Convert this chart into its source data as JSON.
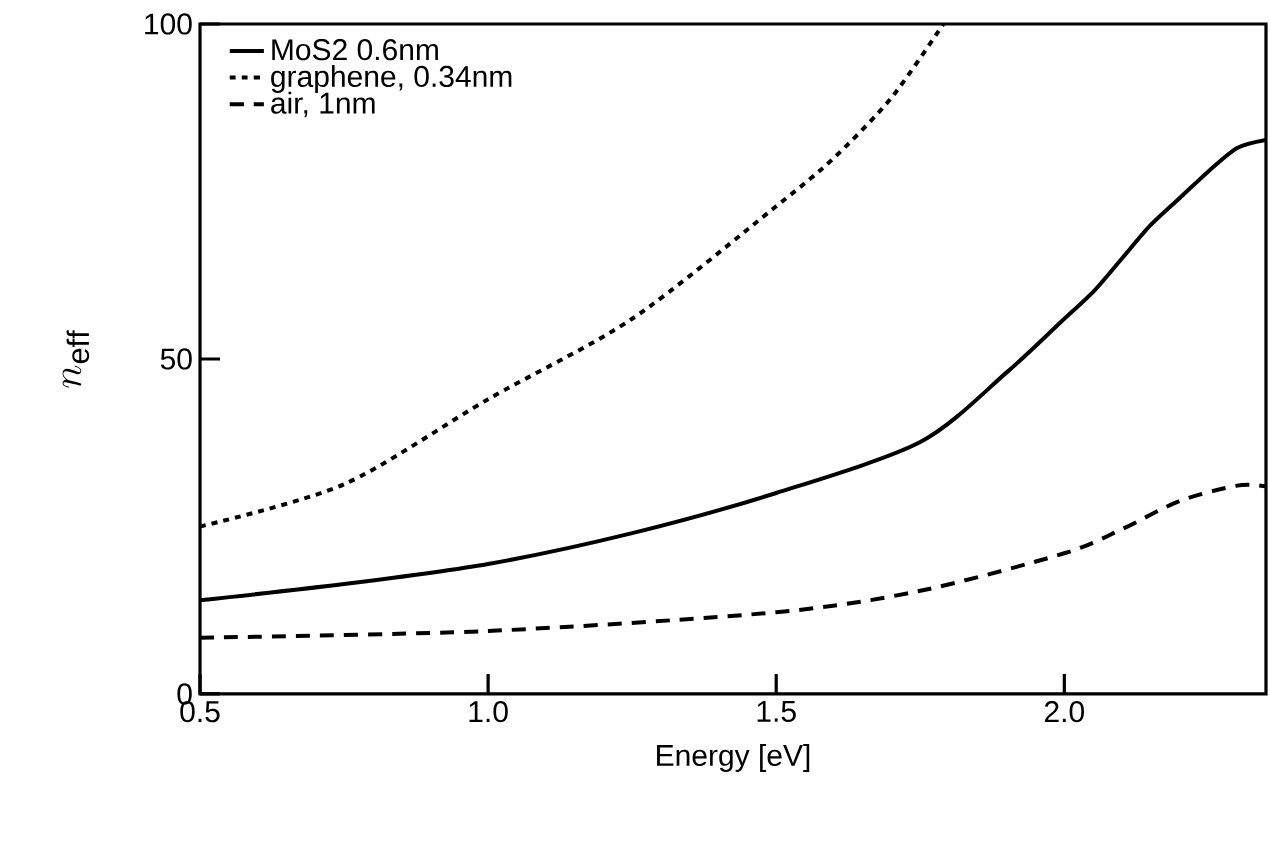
{
  "chart_data": {
    "type": "line",
    "xlabel": "Energy [eV]",
    "ylabel": "n_{\\mathrm{eff}}",
    "xlim": [
      0.5,
      2.35
    ],
    "ylim": [
      0,
      100
    ],
    "xticks": [
      {
        "value": 0.5,
        "label": "0.5"
      },
      {
        "value": 1.0,
        "label": "1.0"
      },
      {
        "value": 1.5,
        "label": "1.5"
      },
      {
        "value": 2.0,
        "label": "2.0"
      }
    ],
    "yticks": [
      0,
      50,
      100
    ],
    "legend": "top left",
    "grid": false,
    "marker": "none",
    "series": [
      {
        "name": "MoS2 0.6nm",
        "color": "#000000",
        "line_style": "solid",
        "x": [
          0.5,
          0.75,
          1.0,
          1.25,
          1.5,
          1.75,
          1.9,
          2.0,
          2.05,
          2.1,
          2.15,
          2.2,
          2.25,
          2.3,
          2.35
        ],
        "values": [
          14,
          16.4,
          19.4,
          24,
          30,
          37.6,
          48,
          56,
          60,
          65,
          70,
          74,
          78,
          81.5,
          82.7
        ]
      },
      {
        "name": "graphene, 0.34nm",
        "color": "#000000",
        "line_style": "dotted",
        "x": [
          0.5,
          0.75,
          1.0,
          1.25,
          1.5,
          1.6,
          1.7,
          1.79
        ],
        "values": [
          25,
          31.3,
          44,
          56,
          72.8,
          80,
          89,
          100
        ]
      },
      {
        "name": "air, 1nm",
        "color": "#000000",
        "line_style": "dashed",
        "x": [
          0.5,
          1.0,
          1.5,
          1.75,
          2.0,
          2.1,
          2.2,
          2.3,
          2.35
        ],
        "values": [
          8.4,
          9.4,
          12.2,
          15.4,
          21,
          24.6,
          28.8,
          31.1,
          31
        ]
      }
    ]
  }
}
